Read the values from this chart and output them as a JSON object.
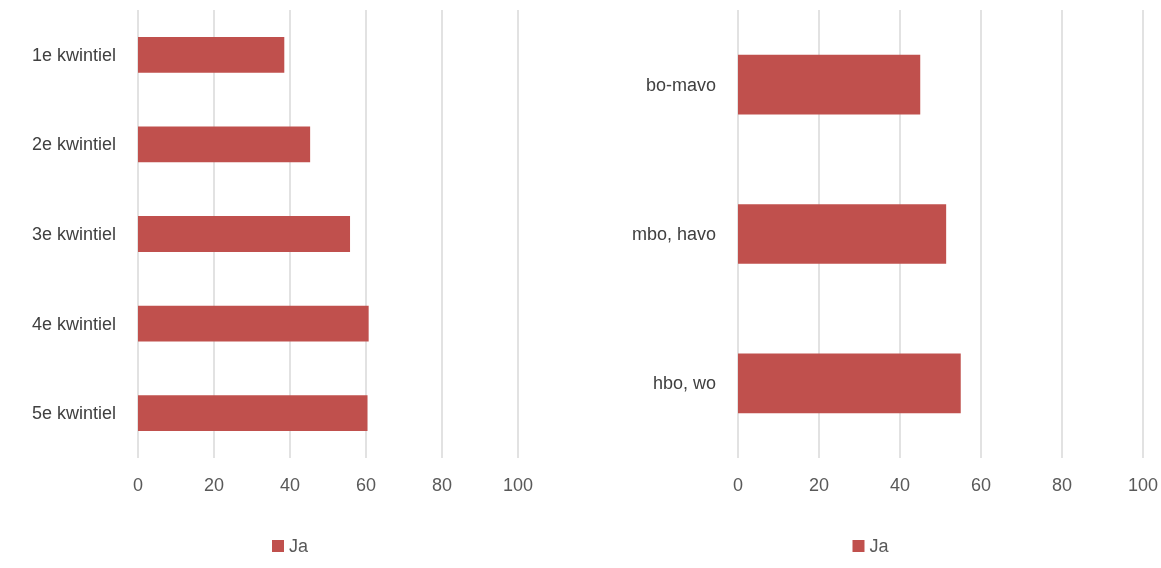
{
  "chart_data": [
    {
      "type": "bar",
      "orientation": "horizontal",
      "categories": [
        "1e kwintiel",
        "2e kwintiel",
        "3e kwintiel",
        "4e kwintiel",
        "5e kwintiel"
      ],
      "series": [
        {
          "name": "Ja",
          "color": "#c0504d",
          "values": [
            38.5,
            45.3,
            55.8,
            60.7,
            60.4
          ]
        }
      ],
      "xlim": [
        0,
        100
      ],
      "xticks": [
        0,
        20,
        40,
        60,
        80,
        100
      ],
      "grid": "x",
      "legend": "bottom"
    },
    {
      "type": "bar",
      "orientation": "horizontal",
      "categories": [
        "bo-mavo",
        "mbo, havo",
        "hbo, wo"
      ],
      "series": [
        {
          "name": "Ja",
          "color": "#c0504d",
          "values": [
            45,
            51.4,
            55
          ]
        }
      ],
      "xlim": [
        0,
        100
      ],
      "xticks": [
        0,
        20,
        40,
        60,
        80,
        100
      ],
      "grid": "x",
      "legend": "bottom"
    }
  ]
}
